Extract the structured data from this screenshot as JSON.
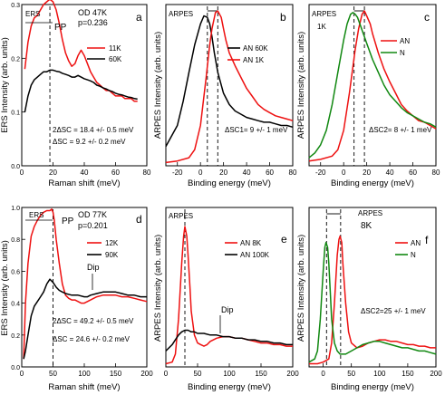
{
  "colors": {
    "red": "#ee1111",
    "black": "#000000",
    "green": "#118811"
  },
  "chart_data": [
    {
      "id": "a",
      "type": "line",
      "panel_letter": "a",
      "xlabel": "Raman shift (meV)",
      "ylabel": "ERS Intensity  (arb. units)",
      "xlim": [
        0,
        80
      ],
      "ylim": [
        0,
        0.3
      ],
      "xticks": [
        0,
        20,
        40,
        60,
        80
      ],
      "yticks": [
        0.0,
        0.1,
        0.2,
        0.3
      ],
      "ytick_labels": [
        "0.0",
        "0.1",
        "0.2",
        "0.3"
      ],
      "texts": {
        "sample": "OD 47K",
        "p": "p=0.236",
        "ers": "ERS",
        "pp": "PP",
        "gap1": "2ΔSC = 18.4  +/- 0.5 meV",
        "gap2": "ΔSC  = 9.2  +/- 0.2 meV"
      },
      "series": [
        {
          "name": "11K",
          "color": "red",
          "x": [
            2,
            4,
            6,
            8,
            10,
            12,
            14,
            16,
            18,
            20,
            22,
            24,
            26,
            28,
            30,
            32,
            34,
            36,
            38,
            40,
            42,
            44,
            46,
            48,
            50,
            52,
            54,
            56,
            58,
            60,
            62,
            64,
            66,
            68,
            70,
            72,
            74
          ],
          "y": [
            0.18,
            0.23,
            0.26,
            0.275,
            0.28,
            0.29,
            0.3,
            0.305,
            0.31,
            0.305,
            0.29,
            0.265,
            0.235,
            0.21,
            0.195,
            0.185,
            0.19,
            0.205,
            0.215,
            0.205,
            0.19,
            0.175,
            0.165,
            0.155,
            0.15,
            0.145,
            0.14,
            0.14,
            0.135,
            0.13,
            0.13,
            0.13,
            0.125,
            0.125,
            0.125,
            0.12,
            0.12
          ]
        },
        {
          "name": "60K",
          "color": "black",
          "x": [
            2,
            4,
            6,
            8,
            10,
            12,
            14,
            16,
            18,
            20,
            22,
            24,
            26,
            28,
            30,
            32,
            34,
            36,
            38,
            40,
            42,
            44,
            46,
            48,
            50,
            52,
            54,
            56,
            58,
            60,
            62,
            64,
            66,
            68,
            70,
            72,
            74
          ],
          "y": [
            0.1,
            0.13,
            0.15,
            0.16,
            0.165,
            0.17,
            0.175,
            0.175,
            0.178,
            0.178,
            0.176,
            0.175,
            0.172,
            0.17,
            0.168,
            0.165,
            0.165,
            0.168,
            0.165,
            0.162,
            0.16,
            0.158,
            0.155,
            0.15,
            0.148,
            0.145,
            0.143,
            0.14,
            0.138,
            0.135,
            0.133,
            0.132,
            0.13,
            0.128,
            0.127,
            0.125,
            0.124
          ]
        }
      ],
      "vline_x": 18
    },
    {
      "id": "b",
      "type": "line",
      "panel_letter": "b",
      "xlabel": "Binding energy  (meV)",
      "ylabel": "ARPES Intensity  (arb. units)",
      "xlim": [
        -30,
        80
      ],
      "ylim": [
        0,
        1
      ],
      "xticks": [
        -20,
        0,
        20,
        40,
        60,
        80
      ],
      "texts": {
        "arpes": "ARPES",
        "gap": "ΔSC1= 9 +/- 1 meV"
      },
      "series": [
        {
          "name": "AN  60K",
          "color": "black",
          "x": [
            -30,
            -20,
            -15,
            -10,
            -5,
            0,
            3,
            6,
            8,
            10,
            12,
            15,
            20,
            25,
            30,
            35,
            40,
            45,
            50,
            55,
            60,
            65,
            70,
            75,
            80
          ],
          "y": [
            0.12,
            0.25,
            0.4,
            0.58,
            0.75,
            0.88,
            0.93,
            0.92,
            0.88,
            0.8,
            0.7,
            0.58,
            0.45,
            0.38,
            0.34,
            0.32,
            0.3,
            0.29,
            0.28,
            0.27,
            0.27,
            0.26,
            0.25,
            0.25,
            0.24
          ]
        },
        {
          "name": "AN  1K",
          "color": "red",
          "x": [
            -30,
            -20,
            -10,
            -5,
            0,
            5,
            8,
            10,
            13,
            15,
            18,
            20,
            22,
            25,
            30,
            35,
            40,
            45,
            50,
            55,
            60,
            65,
            70,
            75,
            80
          ],
          "y": [
            0.02,
            0.03,
            0.05,
            0.1,
            0.25,
            0.55,
            0.75,
            0.85,
            0.95,
            0.96,
            0.92,
            0.85,
            0.78,
            0.7,
            0.62,
            0.55,
            0.48,
            0.43,
            0.38,
            0.35,
            0.33,
            0.31,
            0.3,
            0.29,
            0.28
          ]
        }
      ],
      "vlines_x": [
        6,
        15
      ]
    },
    {
      "id": "c",
      "type": "line",
      "panel_letter": "c",
      "xlabel": "Binding energy  (meV)",
      "ylabel": "ARPES Intensity  (arb. units)",
      "xlim": [
        -30,
        80
      ],
      "ylim": [
        0,
        1
      ],
      "xticks": [
        -20,
        0,
        20,
        40,
        60,
        80
      ],
      "texts": {
        "arpes": "ARPES",
        "temp": "1K",
        "gap": "ΔSC2= 8 +/- 1 meV"
      },
      "series": [
        {
          "name": "AN",
          "color": "red",
          "x": [
            -30,
            -20,
            -10,
            -5,
            0,
            5,
            10,
            13,
            16,
            18,
            20,
            23,
            25,
            30,
            35,
            40,
            45,
            50,
            55,
            60,
            65,
            70,
            75,
            80
          ],
          "y": [
            0.03,
            0.04,
            0.06,
            0.1,
            0.22,
            0.45,
            0.72,
            0.85,
            0.94,
            0.96,
            0.93,
            0.88,
            0.82,
            0.7,
            0.6,
            0.52,
            0.45,
            0.38,
            0.34,
            0.31,
            0.28,
            0.27,
            0.25,
            0.23
          ]
        },
        {
          "name": "N",
          "color": "green",
          "x": [
            -30,
            -25,
            -20,
            -15,
            -10,
            -5,
            0,
            3,
            6,
            8,
            10,
            12,
            15,
            20,
            25,
            30,
            35,
            40,
            45,
            50,
            55,
            60,
            65,
            70,
            75,
            80
          ],
          "y": [
            0.05,
            0.08,
            0.13,
            0.22,
            0.38,
            0.58,
            0.78,
            0.88,
            0.94,
            0.95,
            0.94,
            0.92,
            0.86,
            0.76,
            0.66,
            0.58,
            0.5,
            0.44,
            0.4,
            0.36,
            0.33,
            0.31,
            0.29,
            0.27,
            0.26,
            0.24
          ]
        }
      ],
      "vlines_x": [
        9,
        18
      ]
    },
    {
      "id": "d",
      "type": "line",
      "panel_letter": "d",
      "xlabel": "Raman shift (meV)",
      "ylabel": "ERS Intensity  (arb. units)",
      "xlim": [
        0,
        200
      ],
      "ylim": [
        0,
        1.0
      ],
      "xticks": [
        0,
        50,
        100,
        150,
        200
      ],
      "yticks": [
        0.0,
        0.2,
        0.4,
        0.6,
        0.8,
        1.0
      ],
      "ytick_labels": [
        "0.0",
        "0.2",
        "0.4",
        "0.6",
        "0.8",
        "1.0"
      ],
      "texts": {
        "sample": "OD 77K",
        "p": "p=0.201",
        "ers": "ERS",
        "pp": "PP",
        "dip": "Dip",
        "gap1": "2ΔSC = 49.2  +/- 0.5 meV",
        "gap2": "ΔSC  = 24.6  +/- 0.2 meV"
      },
      "series": [
        {
          "name": "12K",
          "color": "red",
          "x": [
            3,
            6,
            10,
            15,
            20,
            25,
            30,
            35,
            40,
            45,
            48,
            50,
            52,
            55,
            60,
            65,
            70,
            75,
            80,
            85,
            90,
            95,
            100,
            105,
            110,
            115,
            120,
            130,
            140,
            150,
            160,
            170,
            180,
            190,
            200
          ],
          "y": [
            0.05,
            0.4,
            0.65,
            0.82,
            0.88,
            0.92,
            0.95,
            0.97,
            0.98,
            0.98,
            0.99,
            0.97,
            0.92,
            0.8,
            0.65,
            0.52,
            0.45,
            0.43,
            0.42,
            0.42,
            0.41,
            0.4,
            0.4,
            0.41,
            0.42,
            0.43,
            0.44,
            0.45,
            0.45,
            0.45,
            0.44,
            0.44,
            0.43,
            0.42,
            0.41
          ]
        },
        {
          "name": "90K",
          "color": "black",
          "x": [
            3,
            6,
            10,
            15,
            20,
            25,
            30,
            35,
            40,
            45,
            50,
            55,
            60,
            65,
            70,
            80,
            90,
            100,
            105,
            110,
            120,
            130,
            140,
            150,
            160,
            170,
            180,
            190,
            200
          ],
          "y": [
            0.05,
            0.1,
            0.2,
            0.32,
            0.38,
            0.41,
            0.44,
            0.47,
            0.52,
            0.55,
            0.53,
            0.5,
            0.48,
            0.47,
            0.46,
            0.45,
            0.45,
            0.44,
            0.44,
            0.45,
            0.46,
            0.47,
            0.47,
            0.47,
            0.46,
            0.45,
            0.45,
            0.44,
            0.44
          ]
        }
      ],
      "vline_x": 50
    },
    {
      "id": "e",
      "type": "line",
      "panel_letter": "e",
      "xlabel": "Binding energy  (meV)",
      "ylabel": "ARPES Intensity  (arb. units)",
      "xlim": [
        0,
        200
      ],
      "ylim": [
        0,
        1
      ],
      "xticks": [
        0,
        50,
        100,
        150,
        200
      ],
      "texts": {
        "arpes": "ARPES",
        "dip": "Dip"
      },
      "series": [
        {
          "name": "AN  8K",
          "color": "red",
          "x": [
            0,
            10,
            15,
            20,
            25,
            28,
            30,
            33,
            35,
            38,
            40,
            45,
            50,
            55,
            60,
            65,
            70,
            80,
            90,
            100,
            110,
            120,
            130,
            140,
            150,
            160,
            170,
            180,
            190,
            200
          ],
          "y": [
            0.02,
            0.03,
            0.08,
            0.3,
            0.65,
            0.82,
            0.88,
            0.82,
            0.7,
            0.5,
            0.35,
            0.2,
            0.15,
            0.14,
            0.13,
            0.14,
            0.16,
            0.18,
            0.19,
            0.19,
            0.18,
            0.18,
            0.17,
            0.16,
            0.15,
            0.15,
            0.14,
            0.14,
            0.13,
            0.13
          ]
        },
        {
          "name": "AN  100K",
          "color": "black",
          "x": [
            0,
            10,
            15,
            20,
            25,
            30,
            35,
            40,
            45,
            50,
            55,
            60,
            70,
            80,
            90,
            100,
            110,
            120,
            130,
            140,
            150,
            160,
            170,
            180,
            190,
            200
          ],
          "y": [
            0.1,
            0.14,
            0.17,
            0.2,
            0.22,
            0.23,
            0.23,
            0.22,
            0.22,
            0.21,
            0.21,
            0.21,
            0.2,
            0.2,
            0.19,
            0.19,
            0.18,
            0.18,
            0.17,
            0.17,
            0.16,
            0.16,
            0.15,
            0.15,
            0.14,
            0.14
          ]
        }
      ],
      "vline_x": 30
    },
    {
      "id": "f",
      "type": "line",
      "panel_letter": "f",
      "xlabel": "Binding energy  (meV)",
      "ylabel": "ARPES Intensity  (arb. units)",
      "xlim": [
        -25,
        200
      ],
      "ylim": [
        0,
        1
      ],
      "xticks": [
        0,
        50,
        100,
        150,
        200
      ],
      "texts": {
        "arpes": "ARPES",
        "temp": "8K",
        "gap": "ΔSC2=25 +/- 1 meV"
      },
      "series": [
        {
          "name": "AN",
          "color": "red",
          "x": [
            -25,
            -10,
            0,
            10,
            15,
            20,
            25,
            28,
            30,
            33,
            35,
            40,
            45,
            50,
            60,
            70,
            80,
            90,
            100,
            110,
            120,
            130,
            140,
            150,
            160,
            170,
            180,
            190,
            200
          ],
          "y": [
            0.02,
            0.02,
            0.03,
            0.05,
            0.15,
            0.4,
            0.7,
            0.8,
            0.82,
            0.78,
            0.65,
            0.4,
            0.22,
            0.15,
            0.12,
            0.13,
            0.15,
            0.16,
            0.17,
            0.17,
            0.16,
            0.16,
            0.15,
            0.14,
            0.14,
            0.13,
            0.13,
            0.12,
            0.12
          ]
        },
        {
          "name": "N",
          "color": "green",
          "x": [
            -25,
            -15,
            -10,
            -5,
            0,
            3,
            5,
            8,
            10,
            13,
            15,
            20,
            25,
            30,
            40,
            50,
            60,
            70,
            80,
            90,
            100,
            110,
            120,
            130,
            140,
            150,
            160,
            170,
            180,
            190,
            200
          ],
          "y": [
            0.03,
            0.05,
            0.1,
            0.3,
            0.6,
            0.75,
            0.78,
            0.75,
            0.65,
            0.45,
            0.3,
            0.15,
            0.1,
            0.08,
            0.08,
            0.1,
            0.12,
            0.14,
            0.15,
            0.16,
            0.16,
            0.15,
            0.14,
            0.13,
            0.12,
            0.12,
            0.11,
            0.1,
            0.1,
            0.09,
            0.08
          ]
        }
      ],
      "vlines_x": [
        6,
        31
      ]
    }
  ]
}
